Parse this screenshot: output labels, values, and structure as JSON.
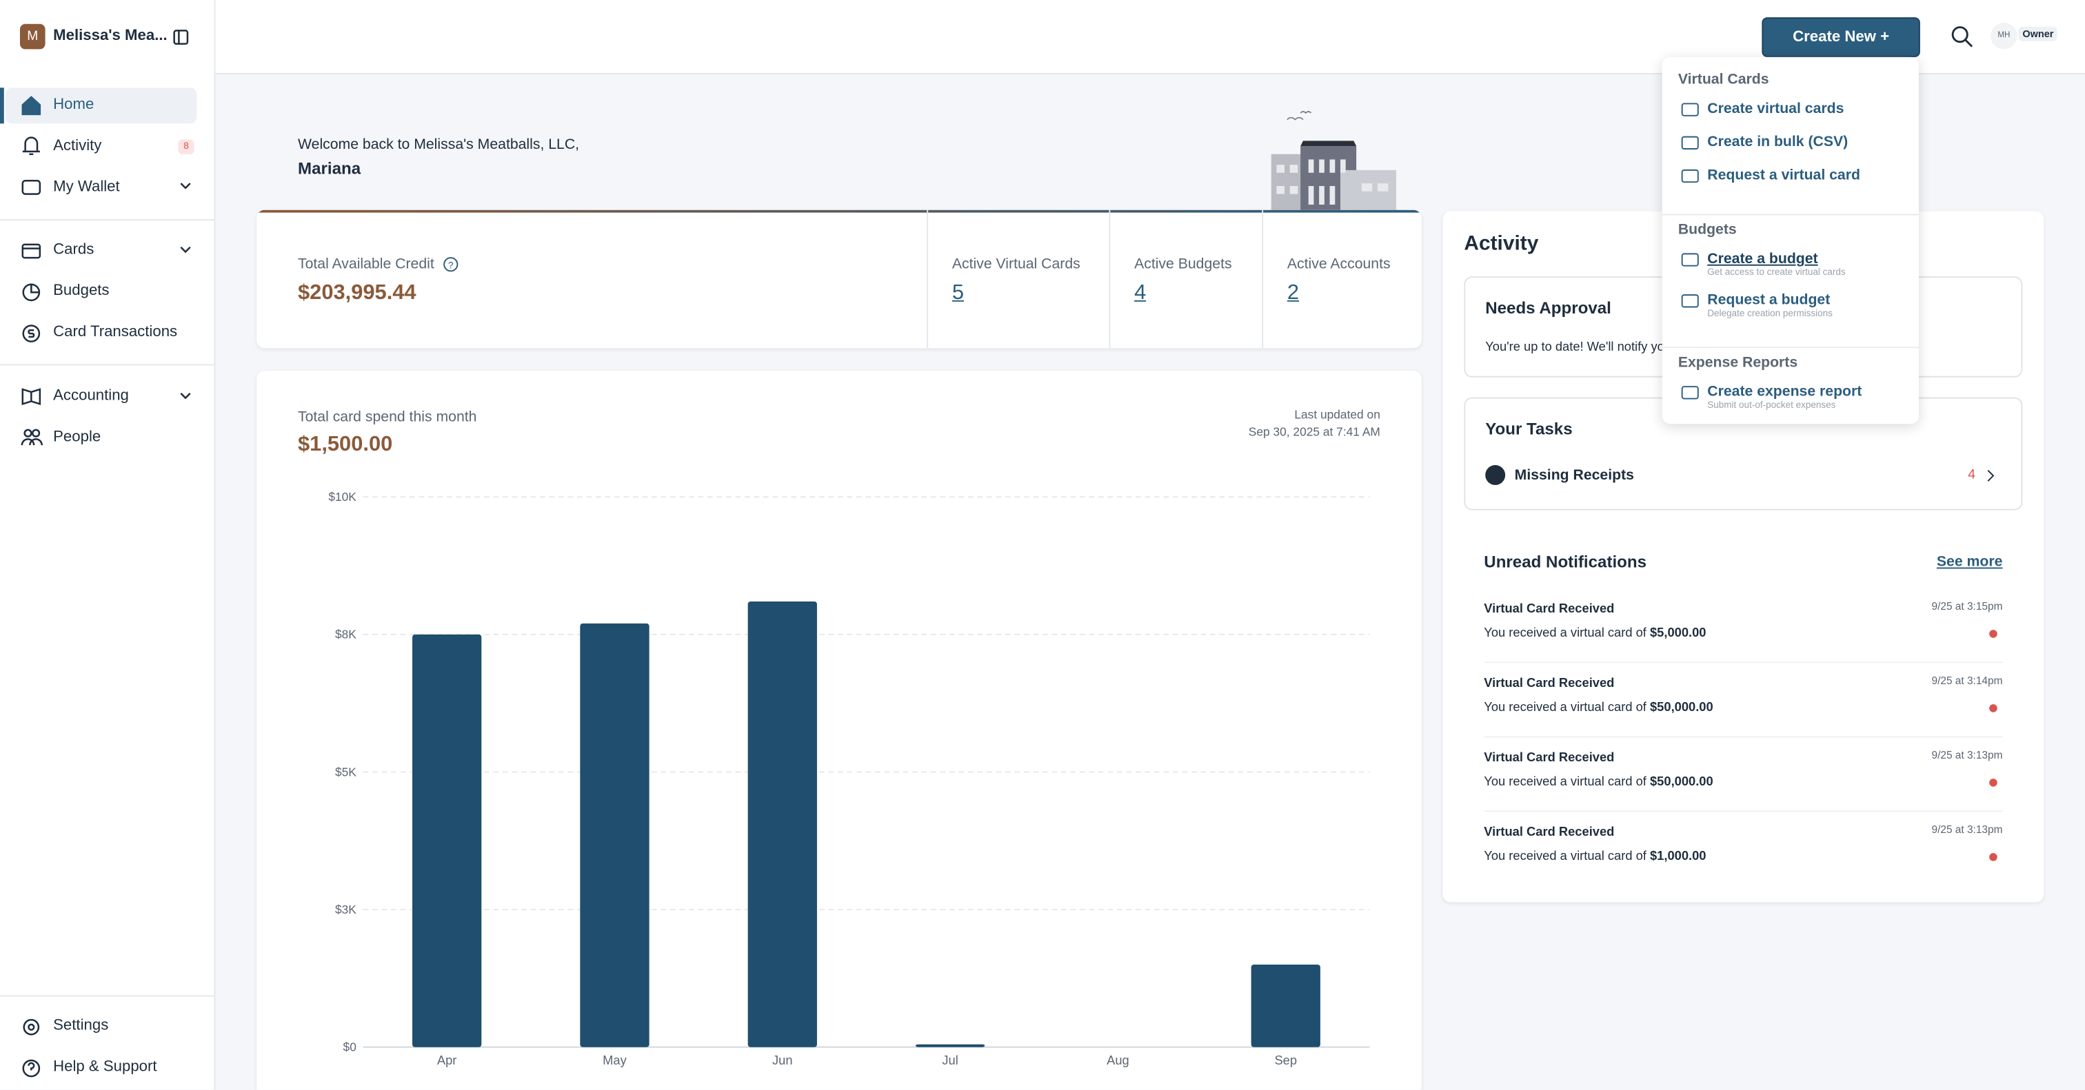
{
  "sidebar": {
    "org_initial": "M",
    "org_name": "Melissa's Mea...",
    "nav": [
      {
        "label": "Home"
      },
      {
        "label": "Activity",
        "badge": "8"
      },
      {
        "label": "My Wallet"
      }
    ],
    "nav2": [
      "Cards",
      "Budgets",
      "Card Transactions"
    ],
    "nav3": [
      "Accounting",
      "People"
    ],
    "footer": [
      "Settings",
      "Help & Support"
    ]
  },
  "topbar": {
    "create_button": "Create New +",
    "avatar": "MH",
    "role": "Owner"
  },
  "welcome": {
    "greeting": "Welcome back to Melissa's Meatballs, LLC,",
    "name": "Mariana"
  },
  "summary": {
    "credit_label": "Total Available Credit",
    "credit_value": "$203,995.44",
    "stats": [
      {
        "label": "Active Virtual Cards",
        "value": "5"
      },
      {
        "label": "Active Budgets",
        "value": "4"
      },
      {
        "label": "Active Accounts",
        "value": "2"
      }
    ]
  },
  "chart_data": {
    "type": "bar",
    "title": "Total card spend this month",
    "subtitle": "$1,500.00",
    "annotations": [
      "Last updated on",
      "Sep 30, 2025 at 7:41 AM"
    ],
    "categories": [
      "Apr",
      "May",
      "Jun",
      "Jul",
      "Aug",
      "Sep"
    ],
    "values": [
      7500,
      7700,
      8100,
      50,
      0,
      1500
    ],
    "color": "#1f4e6e",
    "ylim": [
      0,
      10000
    ],
    "yticks": [
      {
        "value": 0,
        "label": "$0"
      },
      {
        "value": 2500,
        "label": "$3K"
      },
      {
        "value": 5000,
        "label": "$5K"
      },
      {
        "value": 7500,
        "label": "$8K"
      },
      {
        "value": 10000,
        "label": "$10K"
      }
    ],
    "grid": true
  },
  "activity": {
    "title": "Activity",
    "needs_approval": {
      "title": "Needs Approval",
      "text": "You're up to date! We'll notify yo"
    },
    "tasks": {
      "title": "Your Tasks",
      "item": "Missing Receipts",
      "count": "4"
    },
    "notifications": {
      "title": "Unread Notifications",
      "see_more": "See more",
      "items": [
        {
          "title": "Virtual Card Received",
          "date": "9/25 at 3:15pm",
          "text": "You received a virtual card of",
          "amount": "$5,000.00"
        },
        {
          "title": "Virtual Card Received",
          "date": "9/25 at 3:14pm",
          "text": "You received a virtual card of",
          "amount": "$50,000.00"
        },
        {
          "title": "Virtual Card Received",
          "date": "9/25 at 3:13pm",
          "text": "You received a virtual card of",
          "amount": "$50,000.00"
        },
        {
          "title": "Virtual Card Received",
          "date": "9/25 at 3:13pm",
          "text": "You received a virtual card of",
          "amount": "$1,000.00"
        }
      ]
    }
  },
  "dropdown": {
    "sections": [
      {
        "title": "Virtual Cards",
        "items": [
          {
            "label": "Create virtual cards"
          },
          {
            "label": "Create in bulk (CSV)"
          },
          {
            "label": "Request a virtual card"
          }
        ]
      },
      {
        "title": "Budgets",
        "items": [
          {
            "label": "Create a budget",
            "sub": "Get access to create virtual cards"
          },
          {
            "label": "Request a budget",
            "sub": "Delegate creation permissions"
          }
        ]
      },
      {
        "title": "Expense Reports",
        "items": [
          {
            "label": "Create expense report",
            "sub": "Submit out-of-pocket expenses"
          }
        ]
      }
    ]
  }
}
